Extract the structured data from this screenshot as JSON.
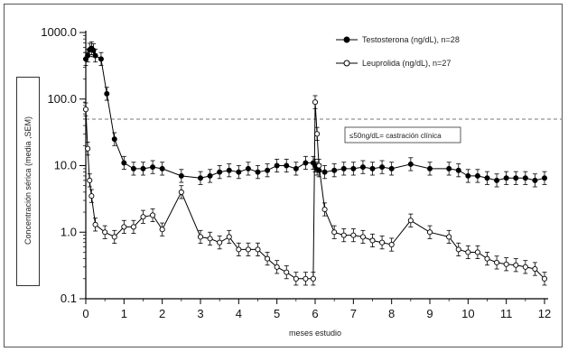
{
  "chart_data": {
    "type": "line",
    "xlabel": "meses estudio",
    "ylabel": "Concentración sérica (media ,SEM)",
    "scale": "log",
    "xlim": [
      0,
      12
    ],
    "ylim": [
      0.1,
      1000
    ],
    "x_ticks": [
      "0",
      "1",
      "2",
      "3",
      "4",
      "5",
      "6",
      "7",
      "8",
      "9",
      "10",
      "11",
      "12"
    ],
    "y_ticks": [
      "0.1",
      "1.0",
      "10.0",
      "100.0",
      "1000.0"
    ],
    "threshold": {
      "value": 50,
      "label": "≤50ng/dL= castración clínica"
    },
    "legend_position": "top-right",
    "series": [
      {
        "name": "Testosterona (ng/dL), n=28",
        "marker": "filled",
        "x": [
          0,
          0.05,
          0.1,
          0.15,
          0.2,
          0.25,
          0.4,
          0.55,
          0.75,
          1.0,
          1.25,
          1.5,
          1.75,
          2.0,
          2.5,
          3.0,
          3.25,
          3.5,
          3.75,
          4.0,
          4.25,
          4.5,
          4.75,
          5.0,
          5.25,
          5.5,
          5.75,
          5.95,
          6.0,
          6.05,
          6.1,
          6.25,
          6.5,
          6.75,
          7.0,
          7.25,
          7.5,
          7.75,
          8.0,
          8.5,
          9.0,
          9.5,
          9.75,
          10.0,
          10.25,
          10.5,
          10.75,
          11.0,
          11.25,
          11.5,
          11.75,
          12.0
        ],
        "values": [
          400,
          450,
          550,
          580,
          540,
          450,
          400,
          120,
          25,
          11,
          9,
          9,
          9.5,
          9,
          7,
          6.5,
          7,
          8,
          8.5,
          8,
          9,
          8,
          8.5,
          10,
          10,
          9,
          11,
          11,
          10,
          9,
          8.5,
          8,
          8.5,
          9,
          9,
          9.5,
          9,
          9.5,
          9,
          10.5,
          9,
          9,
          8.5,
          7,
          7,
          6.5,
          6,
          6.5,
          6.5,
          6.5,
          6,
          6.5
        ]
      },
      {
        "name": "Leuprolida (ng/dL), n=27",
        "marker": "open",
        "x": [
          0,
          0.05,
          0.1,
          0.15,
          0.25,
          0.5,
          0.75,
          1.0,
          1.25,
          1.5,
          1.75,
          2.0,
          2.5,
          3.0,
          3.25,
          3.5,
          3.75,
          4.0,
          4.25,
          4.5,
          4.75,
          5.0,
          5.25,
          5.5,
          5.75,
          5.95,
          6.0,
          6.05,
          6.1,
          6.25,
          6.5,
          6.75,
          7.0,
          7.25,
          7.5,
          7.75,
          8.0,
          8.5,
          9.0,
          9.5,
          9.75,
          10.0,
          10.25,
          10.5,
          10.75,
          11.0,
          11.25,
          11.5,
          11.75,
          12.0
        ],
        "values": [
          70,
          18,
          6,
          3.5,
          1.3,
          1.0,
          0.85,
          1.2,
          1.2,
          1.7,
          1.8,
          1.1,
          4.0,
          0.85,
          0.8,
          0.7,
          0.85,
          0.55,
          0.55,
          0.55,
          0.4,
          0.3,
          0.25,
          0.2,
          0.2,
          0.2,
          90,
          30,
          10,
          2.2,
          1.0,
          0.9,
          0.9,
          0.85,
          0.75,
          0.7,
          0.65,
          1.5,
          1.0,
          0.85,
          0.55,
          0.5,
          0.5,
          0.4,
          0.35,
          0.33,
          0.32,
          0.3,
          0.28,
          0.2
        ]
      }
    ]
  }
}
